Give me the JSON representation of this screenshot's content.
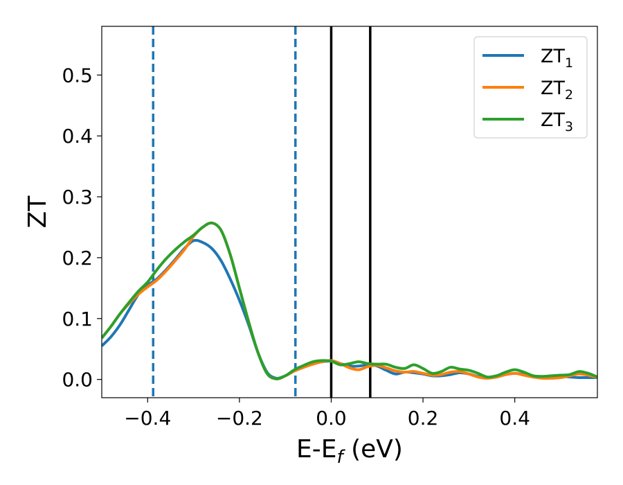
{
  "chart_data": {
    "type": "line",
    "xlabel": "E-E",
    "xlabel_sub": "f",
    "xlabel_unit": " (eV)",
    "ylabel": "ZT",
    "xlim": [
      -0.5,
      0.58
    ],
    "ylim": [
      -0.03,
      0.58
    ],
    "grid": false,
    "legend_position": "top-right",
    "x_ticks": [
      {
        "value": -0.4,
        "label": "−0.4"
      },
      {
        "value": -0.2,
        "label": "−0.2"
      },
      {
        "value": 0.0,
        "label": "0.0"
      },
      {
        "value": 0.2,
        "label": "0.2"
      },
      {
        "value": 0.4,
        "label": "0.4"
      }
    ],
    "y_ticks": [
      {
        "value": 0.0,
        "label": "0.0"
      },
      {
        "value": 0.1,
        "label": "0.1"
      },
      {
        "value": 0.2,
        "label": "0.2"
      },
      {
        "value": 0.3,
        "label": "0.3"
      },
      {
        "value": 0.4,
        "label": "0.4"
      },
      {
        "value": 0.5,
        "label": "0.5"
      }
    ],
    "vertical_lines": [
      {
        "x": -0.388,
        "style": "dashed",
        "color": "#1f77b4"
      },
      {
        "x": -0.078,
        "style": "dashed",
        "color": "#1f77b4"
      },
      {
        "x": 0.0,
        "style": "solid",
        "color": "#000000"
      },
      {
        "x": 0.085,
        "style": "solid",
        "color": "#000000"
      }
    ],
    "series": [
      {
        "name": "ZT",
        "subscript": "1",
        "color": "#1f77b4",
        "points": [
          [
            -0.5,
            0.055
          ],
          [
            -0.48,
            0.07
          ],
          [
            -0.46,
            0.09
          ],
          [
            -0.44,
            0.115
          ],
          [
            -0.42,
            0.14
          ],
          [
            -0.4,
            0.155
          ],
          [
            -0.38,
            0.165
          ],
          [
            -0.36,
            0.18
          ],
          [
            -0.34,
            0.197
          ],
          [
            -0.32,
            0.215
          ],
          [
            -0.3,
            0.228
          ],
          [
            -0.28,
            0.225
          ],
          [
            -0.26,
            0.215
          ],
          [
            -0.24,
            0.195
          ],
          [
            -0.22,
            0.165
          ],
          [
            -0.2,
            0.13
          ],
          [
            -0.18,
            0.09
          ],
          [
            -0.16,
            0.045
          ],
          [
            -0.14,
            0.012
          ],
          [
            -0.12,
            0.002
          ],
          [
            -0.1,
            0.006
          ],
          [
            -0.08,
            0.014
          ],
          [
            -0.06,
            0.02
          ],
          [
            -0.04,
            0.026
          ],
          [
            -0.02,
            0.029
          ],
          [
            0.0,
            0.03
          ],
          [
            0.02,
            0.026
          ],
          [
            0.04,
            0.022
          ],
          [
            0.06,
            0.022
          ],
          [
            0.08,
            0.024
          ],
          [
            0.1,
            0.022
          ],
          [
            0.12,
            0.015
          ],
          [
            0.14,
            0.009
          ],
          [
            0.16,
            0.012
          ],
          [
            0.18,
            0.011
          ],
          [
            0.2,
            0.009
          ],
          [
            0.22,
            0.006
          ],
          [
            0.24,
            0.006
          ],
          [
            0.26,
            0.008
          ],
          [
            0.28,
            0.011
          ],
          [
            0.3,
            0.009
          ],
          [
            0.32,
            0.005
          ],
          [
            0.34,
            0.003
          ],
          [
            0.36,
            0.004
          ],
          [
            0.38,
            0.008
          ],
          [
            0.4,
            0.01
          ],
          [
            0.42,
            0.008
          ],
          [
            0.44,
            0.005
          ],
          [
            0.46,
            0.004
          ],
          [
            0.48,
            0.004
          ],
          [
            0.5,
            0.005
          ],
          [
            0.52,
            0.004
          ],
          [
            0.54,
            0.003
          ],
          [
            0.56,
            0.003
          ],
          [
            0.58,
            0.003
          ]
        ]
      },
      {
        "name": "ZT",
        "subscript": "2",
        "color": "#ff7f0e",
        "points": [
          [
            -0.5,
            0.068
          ],
          [
            -0.48,
            0.087
          ],
          [
            -0.46,
            0.108
          ],
          [
            -0.44,
            0.125
          ],
          [
            -0.42,
            0.14
          ],
          [
            -0.4,
            0.152
          ],
          [
            -0.38,
            0.163
          ],
          [
            -0.36,
            0.178
          ],
          [
            -0.34,
            0.195
          ],
          [
            -0.32,
            0.213
          ],
          [
            -0.3,
            0.235
          ],
          [
            -0.28,
            0.25
          ],
          [
            -0.26,
            0.257
          ],
          [
            -0.24,
            0.245
          ],
          [
            -0.22,
            0.205
          ],
          [
            -0.2,
            0.15
          ],
          [
            -0.18,
            0.095
          ],
          [
            -0.16,
            0.045
          ],
          [
            -0.14,
            0.01
          ],
          [
            -0.12,
            0.001
          ],
          [
            -0.1,
            0.006
          ],
          [
            -0.08,
            0.014
          ],
          [
            -0.06,
            0.02
          ],
          [
            -0.04,
            0.025
          ],
          [
            -0.02,
            0.029
          ],
          [
            0.0,
            0.031
          ],
          [
            0.02,
            0.026
          ],
          [
            0.04,
            0.019
          ],
          [
            0.06,
            0.016
          ],
          [
            0.08,
            0.021
          ],
          [
            0.1,
            0.023
          ],
          [
            0.12,
            0.019
          ],
          [
            0.14,
            0.014
          ],
          [
            0.16,
            0.012
          ],
          [
            0.18,
            0.013
          ],
          [
            0.2,
            0.01
          ],
          [
            0.22,
            0.007
          ],
          [
            0.24,
            0.008
          ],
          [
            0.26,
            0.012
          ],
          [
            0.28,
            0.013
          ],
          [
            0.3,
            0.009
          ],
          [
            0.32,
            0.004
          ],
          [
            0.34,
            0.002
          ],
          [
            0.36,
            0.004
          ],
          [
            0.38,
            0.008
          ],
          [
            0.4,
            0.01
          ],
          [
            0.42,
            0.007
          ],
          [
            0.44,
            0.004
          ],
          [
            0.46,
            0.002
          ],
          [
            0.48,
            0.002
          ],
          [
            0.5,
            0.003
          ],
          [
            0.52,
            0.006
          ],
          [
            0.54,
            0.009
          ],
          [
            0.56,
            0.007
          ],
          [
            0.58,
            0.003
          ]
        ]
      },
      {
        "name": "ZT",
        "subscript": "3",
        "color": "#2ca02c",
        "points": [
          [
            -0.5,
            0.068
          ],
          [
            -0.48,
            0.087
          ],
          [
            -0.46,
            0.108
          ],
          [
            -0.44,
            0.127
          ],
          [
            -0.42,
            0.145
          ],
          [
            -0.4,
            0.16
          ],
          [
            -0.38,
            0.18
          ],
          [
            -0.36,
            0.198
          ],
          [
            -0.34,
            0.213
          ],
          [
            -0.32,
            0.226
          ],
          [
            -0.3,
            0.237
          ],
          [
            -0.28,
            0.25
          ],
          [
            -0.26,
            0.257
          ],
          [
            -0.24,
            0.245
          ],
          [
            -0.22,
            0.205
          ],
          [
            -0.2,
            0.15
          ],
          [
            -0.18,
            0.095
          ],
          [
            -0.16,
            0.045
          ],
          [
            -0.14,
            0.01
          ],
          [
            -0.12,
            0.001
          ],
          [
            -0.1,
            0.006
          ],
          [
            -0.08,
            0.016
          ],
          [
            -0.06,
            0.023
          ],
          [
            -0.04,
            0.029
          ],
          [
            -0.02,
            0.031
          ],
          [
            0.0,
            0.03
          ],
          [
            0.02,
            0.024
          ],
          [
            0.04,
            0.026
          ],
          [
            0.06,
            0.029
          ],
          [
            0.08,
            0.026
          ],
          [
            0.1,
            0.025
          ],
          [
            0.12,
            0.025
          ],
          [
            0.14,
            0.02
          ],
          [
            0.16,
            0.018
          ],
          [
            0.18,
            0.024
          ],
          [
            0.2,
            0.018
          ],
          [
            0.22,
            0.01
          ],
          [
            0.24,
            0.013
          ],
          [
            0.26,
            0.02
          ],
          [
            0.28,
            0.017
          ],
          [
            0.3,
            0.015
          ],
          [
            0.32,
            0.01
          ],
          [
            0.34,
            0.004
          ],
          [
            0.36,
            0.006
          ],
          [
            0.38,
            0.012
          ],
          [
            0.4,
            0.016
          ],
          [
            0.42,
            0.012
          ],
          [
            0.44,
            0.006
          ],
          [
            0.46,
            0.005
          ],
          [
            0.48,
            0.006
          ],
          [
            0.5,
            0.007
          ],
          [
            0.52,
            0.008
          ],
          [
            0.54,
            0.013
          ],
          [
            0.56,
            0.01
          ],
          [
            0.58,
            0.004
          ]
        ]
      }
    ]
  }
}
